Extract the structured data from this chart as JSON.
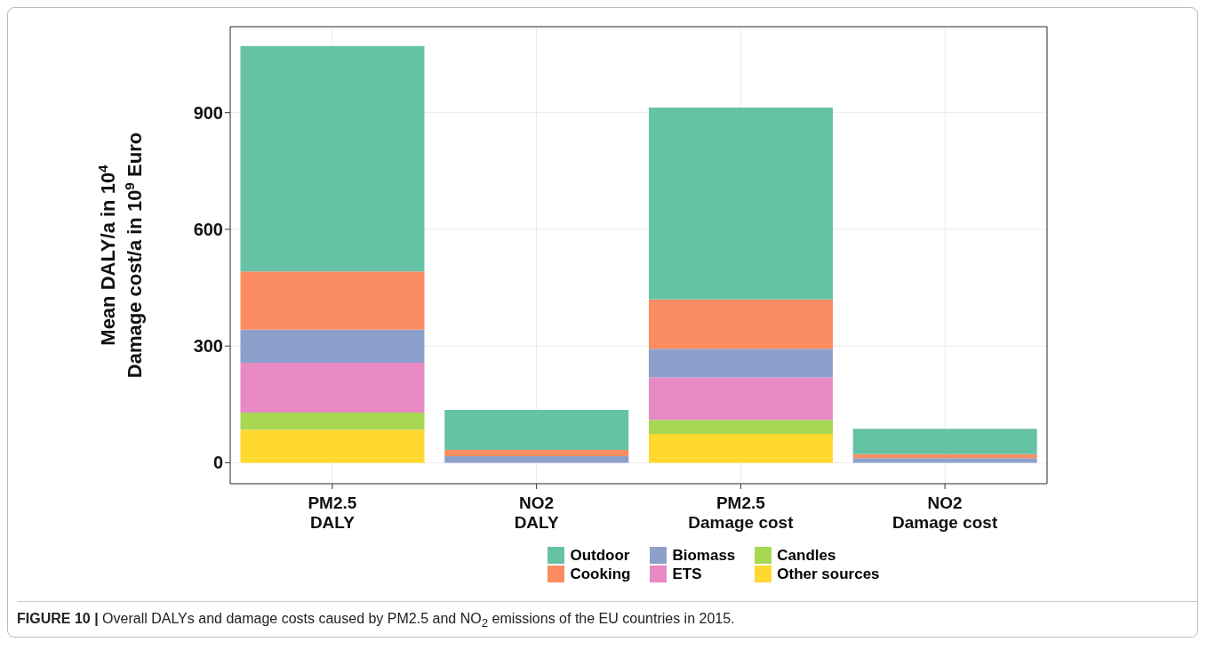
{
  "chart_data": {
    "type": "bar",
    "stacked": true,
    "ylabel": "Mean DALY/a in 10$^{4}$\nDamage cost/a in 10$^{9}$ Euro",
    "categories": [
      "PM2.5\nDALY",
      "NO2\nDALY",
      "PM2.5\nDamage cost",
      "NO2\nDamage cost"
    ],
    "series": [
      {
        "name": "Other sources",
        "color": "#ffd92f",
        "values": [
          85,
          0,
          74,
          0
        ]
      },
      {
        "name": "Candles",
        "color": "#a6d854",
        "values": [
          44,
          0,
          36,
          0
        ]
      },
      {
        "name": "ETS",
        "color": "#e78ac3",
        "values": [
          128,
          null,
          109,
          0
        ]
      },
      {
        "name": "Biomass",
        "color": "#8da0cb",
        "values": [
          85,
          17,
          74,
          12
        ]
      },
      {
        "name": "Cooking",
        "color": "#fc8d62",
        "values": [
          150,
          16,
          127,
          10
        ]
      },
      {
        "name": "Outdoor",
        "color": "#66c2a5",
        "values": [
          579,
          103,
          493,
          65
        ]
      }
    ],
    "ylim": [
      -54,
      1121
    ],
    "yticks": [
      0,
      300,
      600,
      900
    ],
    "grid": true,
    "legend": "bottom",
    "annotations": [
      "FIGURE 10 | Overall DALYs and damage costs caused by PM2.5 and NO$_{2}$ emissions of the EU countries in 2015."
    ]
  }
}
